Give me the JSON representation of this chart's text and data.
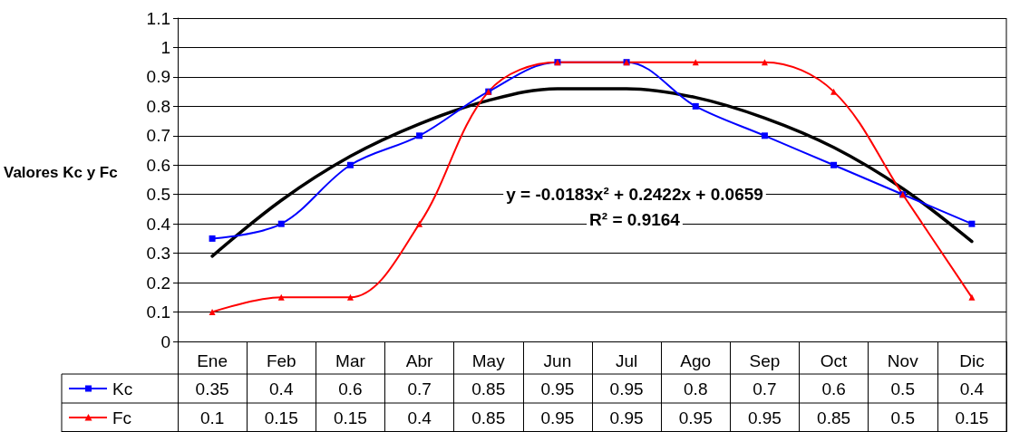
{
  "chart_data": {
    "type": "line",
    "ylabel": "Valores Kc y Fc",
    "categories": [
      "Ene",
      "Feb",
      "Mar",
      "Abr",
      "May",
      "Jun",
      "Jul",
      "Ago",
      "Sep",
      "Oct",
      "Nov",
      "Dic"
    ],
    "series": [
      {
        "name": "Kc",
        "color": "#0000ff",
        "marker": "square",
        "values": [
          0.35,
          0.4,
          0.6,
          0.7,
          0.85,
          0.95,
          0.95,
          0.8,
          0.7,
          0.6,
          0.5,
          0.4
        ],
        "value_labels": [
          "0.35",
          "0.4",
          "0.6",
          "0.7",
          "0.85",
          "0.95",
          "0.95",
          "0.8",
          "0.7",
          "0.6",
          "0.5",
          "0.4"
        ]
      },
      {
        "name": "Fc",
        "color": "#ff0000",
        "marker": "triangle",
        "values": [
          0.1,
          0.15,
          0.15,
          0.4,
          0.85,
          0.95,
          0.95,
          0.95,
          0.95,
          0.85,
          0.5,
          0.15
        ],
        "value_labels": [
          "0.1",
          "0.15",
          "0.15",
          "0.4",
          "0.85",
          "0.95",
          "0.95",
          "0.95",
          "0.95",
          "0.85",
          "0.5",
          "0.15"
        ]
      },
      {
        "type": "line",
        "color": "#000000",
        "marker": "none",
        "x": [
          "Ene",
          "Feb",
          "Mar",
          "Abr",
          "May",
          "Jun",
          "Jul",
          "Ago",
          "Sep",
          "Oct",
          "Nov",
          "Dic"
        ],
        "values": [
          0.29,
          0.48,
          0.63,
          0.74,
          0.82,
          0.86,
          0.86,
          0.83,
          0.76,
          0.66,
          0.52,
          0.34
        ]
      }
    ],
    "ylim": [
      0,
      1.1
    ],
    "yticks": [
      0,
      0.1,
      0.2,
      0.3,
      0.4,
      0.5,
      0.6,
      0.7,
      0.8,
      0.9,
      1,
      1.1
    ],
    "grid": "y",
    "legend": "bottom",
    "line_style": "solid",
    "annotations": [
      "y = -0.0183x² + 0.2422x + 0.0659",
      "R² = 0.9164"
    ]
  }
}
